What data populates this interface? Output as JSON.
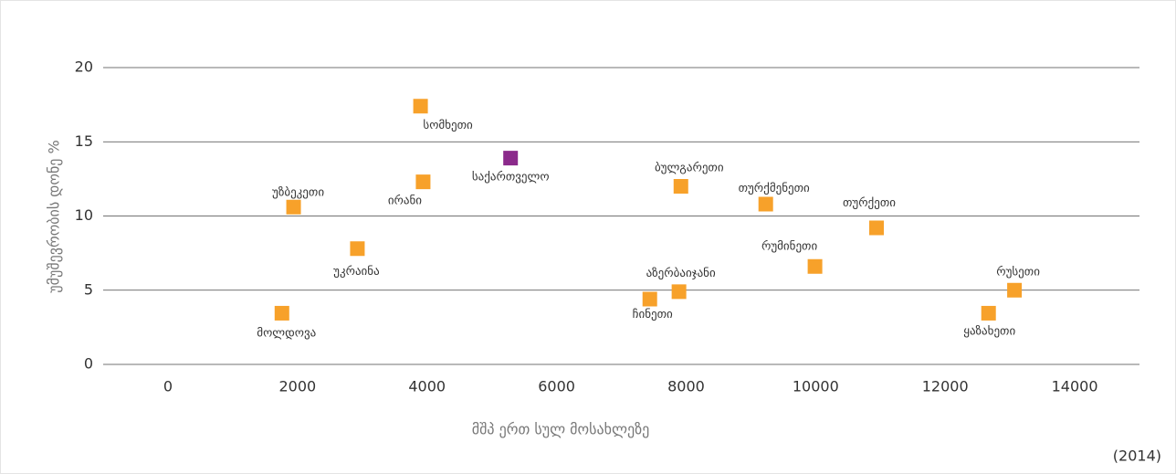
{
  "chart_data": {
    "type": "scatter",
    "x_label": "მშპ ერთ სულ მოსახლეზე",
    "y_label": "უმუშევრობის დონე %",
    "note": "(2014)",
    "labels": [
      "მოლდოვა",
      "უზბეკეთი",
      "უკრაინა",
      "ირანი",
      "სომხეთი",
      "საქართველო",
      "ჩინეთი",
      "აზერბაიჯანი",
      "ბულგარეთი",
      "თურქმენეთი",
      "რუმინეთი",
      "თურქეთი",
      "ყაზახეთი",
      "რუსეთი"
    ],
    "x": [
      1760,
      1940,
      2925,
      3940,
      3900,
      5290,
      7440,
      7890,
      7920,
      9230,
      9990,
      10940,
      12670,
      13070
    ],
    "values": [
      3.45,
      10.6,
      7.8,
      12.3,
      17.4,
      13.9,
      4.4,
      4.9,
      12.0,
      10.8,
      6.6,
      9.2,
      3.45,
      5.0
    ],
    "colors": [
      "#f7a12a",
      "#f7a12a",
      "#f7a12a",
      "#f7a12a",
      "#f7a12a",
      "#8b2a8b",
      "#f7a12a",
      "#f7a12a",
      "#f7a12a",
      "#f7a12a",
      "#f7a12a",
      "#f7a12a",
      "#f7a12a",
      "#f7a12a"
    ],
    "xlim": [
      -1000,
      15000
    ],
    "xticks": [
      0,
      2000,
      4000,
      6000,
      8000,
      10000,
      12000,
      14000
    ],
    "ylim": [
      0,
      20
    ],
    "yticks": [
      0,
      5,
      10,
      15,
      20
    ],
    "grid": true
  }
}
